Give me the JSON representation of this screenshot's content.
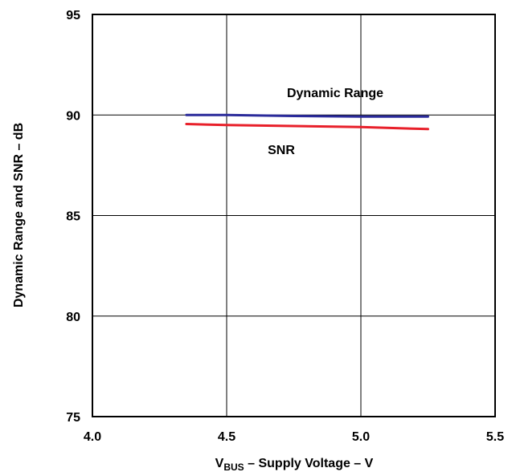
{
  "chart_data": {
    "type": "line",
    "xlabel_parts": {
      "prefix": "V",
      "subscript": "BUS",
      "suffix": " – Supply Voltage – V"
    },
    "ylabel": "Dynamic Range and SNR – dB",
    "xlim": [
      4.0,
      5.5
    ],
    "ylim": [
      75,
      95
    ],
    "x_ticks": [
      "4.0",
      "4.5",
      "5.0",
      "5.5"
    ],
    "y_ticks": [
      "95",
      "90",
      "85",
      "80",
      "75"
    ],
    "grid": true,
    "series": [
      {
        "name": "Dynamic Range",
        "color": "#2a2a9a",
        "x": [
          4.35,
          4.5,
          4.75,
          5.0,
          5.25
        ],
        "y": [
          90.0,
          90.0,
          89.95,
          89.92,
          89.92
        ]
      },
      {
        "name": "SNR",
        "color": "#e8202a",
        "x": [
          4.35,
          4.5,
          4.75,
          5.0,
          5.25
        ],
        "y": [
          89.55,
          89.5,
          89.45,
          89.4,
          89.3
        ]
      }
    ]
  }
}
